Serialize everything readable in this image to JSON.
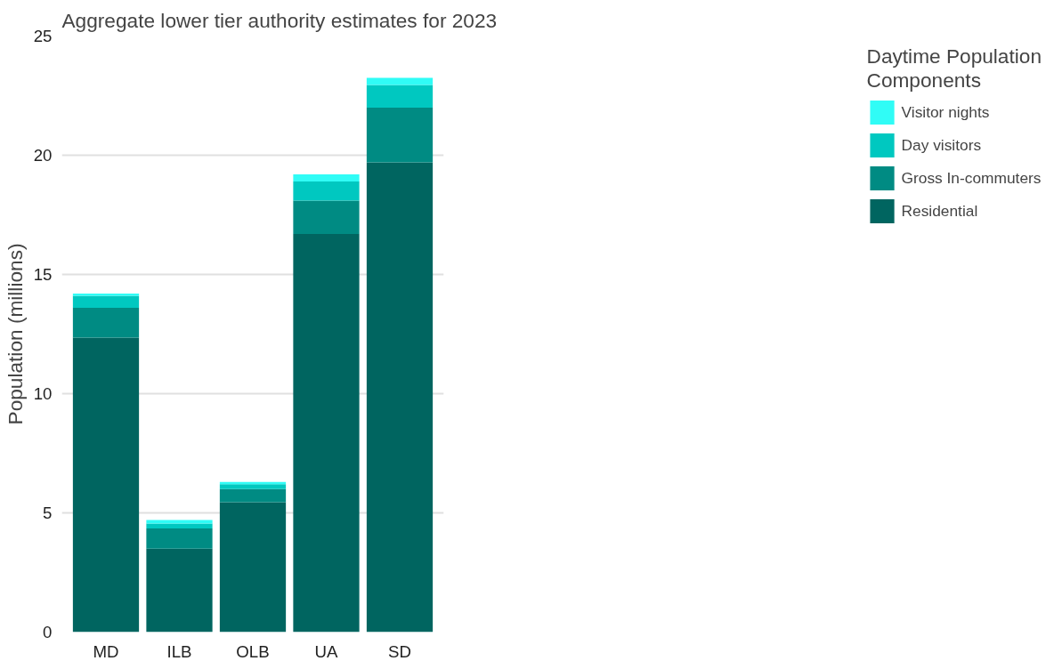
{
  "chart_data": {
    "type": "bar",
    "title": "Aggregate lower tier authority estimates for 2023",
    "ylabel": "Population (millions)",
    "legend_title": "Daytime Population Components",
    "categories": [
      "MD",
      "ILB",
      "OLB",
      "UA",
      "SD"
    ],
    "stacked": true,
    "series": [
      {
        "name": "Residential",
        "color": "#006560",
        "values": [
          12.35,
          3.5,
          5.45,
          16.7,
          19.7
        ]
      },
      {
        "name": "Gross In-commuters",
        "color": "#008b83",
        "values": [
          1.25,
          0.85,
          0.55,
          1.4,
          2.3
        ]
      },
      {
        "name": "Day visitors",
        "color": "#00c8c0",
        "values": [
          0.5,
          0.2,
          0.2,
          0.8,
          0.95
        ]
      },
      {
        "name": "Visitor nights",
        "color": "#30fcf6",
        "values": [
          0.1,
          0.15,
          0.1,
          0.3,
          0.3
        ]
      }
    ],
    "ylim": [
      0,
      25
    ],
    "yticks": [
      0,
      5,
      10,
      15,
      20,
      25
    ],
    "grid": "y",
    "legend": "right"
  }
}
